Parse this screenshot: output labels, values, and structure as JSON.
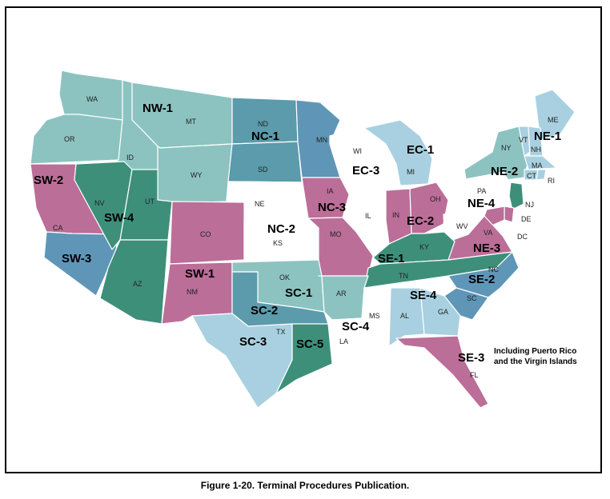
{
  "caption": "Figure 1-20. Terminal Procedures Publication.",
  "note_lines": [
    "Including Puerto Rico",
    "and the Virgin Islands"
  ],
  "colors": {
    "light_teal": "#8cc3c0",
    "dark_teal": "#3e8f7a",
    "steel_blue": "#5b9bab",
    "mid_blue": "#5f96b7",
    "light_blue": "#a8d0e0",
    "pink": "#bb6e98",
    "white": "#ffffff"
  },
  "regions": [
    "NW-1",
    "NC-1",
    "NE-1",
    "EC-1",
    "EC-3",
    "NE-2",
    "SW-2",
    "SW-4",
    "NC-3",
    "EC-2",
    "NE-4",
    "NC-2",
    "SW-3",
    "SE-1",
    "NE-3",
    "SW-1",
    "SC-1",
    "SE-2",
    "SE-4",
    "SC-2",
    "SC-4",
    "SC-3",
    "SC-5",
    "SE-3"
  ],
  "states": [
    "WA",
    "OR",
    "ID",
    "MT",
    "WY",
    "ND",
    "SD",
    "MN",
    "WI",
    "MI",
    "ME",
    "NY",
    "VT",
    "NH",
    "MA",
    "CT",
    "RI",
    "PA",
    "NJ",
    "DE",
    "DC",
    "IA",
    "NE",
    "IL",
    "IN",
    "OH",
    "CA",
    "NV",
    "UT",
    "CO",
    "KS",
    "MO",
    "KY",
    "WV",
    "VA",
    "NC",
    "TN",
    "SC",
    "OK",
    "AR",
    "AZ",
    "NM",
    "MS",
    "AL",
    "GA",
    "TX",
    "LA",
    "FL"
  ]
}
